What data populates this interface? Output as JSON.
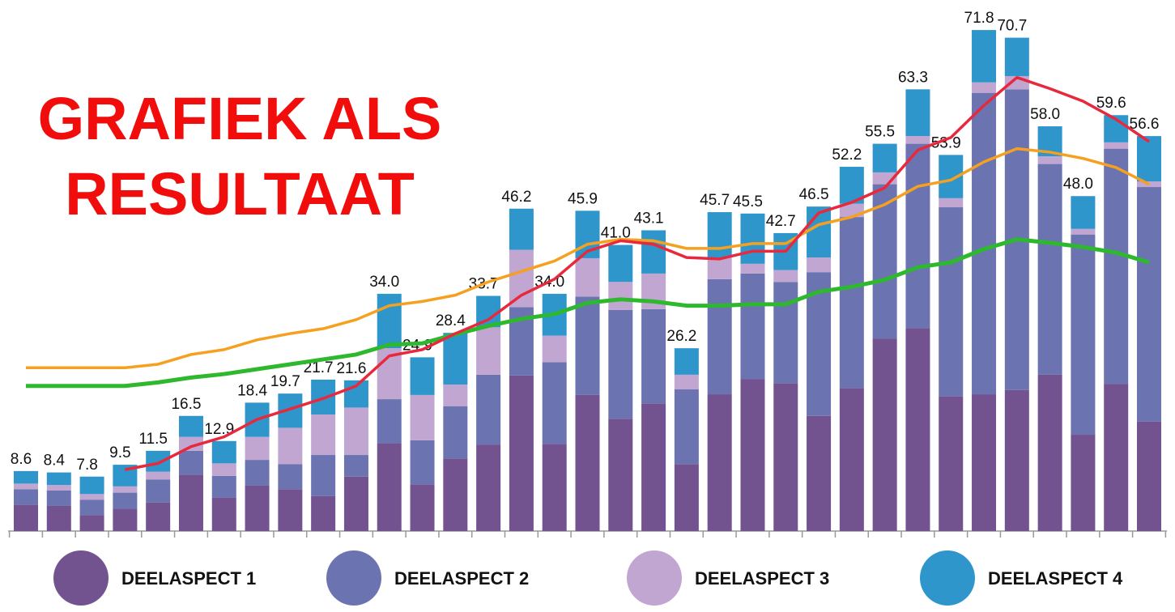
{
  "chart_data": {
    "type": "bar",
    "stacked": true,
    "title": [
      "GRAFIEK ALS",
      "RESULTAAT"
    ],
    "title_color": "#f20d0d",
    "totals": [
      8.6,
      8.4,
      7.8,
      9.5,
      11.5,
      16.5,
      12.9,
      18.4,
      19.7,
      21.7,
      21.6,
      34.0,
      24.9,
      28.4,
      33.7,
      46.2,
      34.0,
      45.9,
      41.0,
      43.1,
      26.2,
      45.7,
      45.5,
      42.7,
      46.5,
      52.2,
      55.5,
      63.3,
      53.9,
      71.8,
      70.7,
      58.0,
      48.0,
      59.6,
      56.6
    ],
    "value_labels": [
      "8.6",
      "8.4",
      "7.8",
      "9.5",
      "11.5",
      "16.5",
      "12.9",
      "18.4",
      "19.7",
      "21.7",
      "21.6",
      "34.0",
      "24.9",
      "28.4",
      "33.7",
      "46.2",
      "34.0",
      "45.9",
      "41.0",
      "43.1",
      "26.2",
      "45.7",
      "45.5",
      "42.7",
      "46.5",
      "52.2",
      "55.5",
      "63.3",
      "53.9",
      "71.8",
      "70.7",
      "58.0",
      "48.0",
      "59.6",
      "56.6"
    ],
    "series": [
      {
        "name": "DEELASPECT 1",
        "color": "#735290",
        "values": [
          3.8,
          3.6,
          2.3,
          3.2,
          4.1,
          8.1,
          4.8,
          6.5,
          6.0,
          5.0,
          7.8,
          12.6,
          6.7,
          10.4,
          12.4,
          22.3,
          12.5,
          19.5,
          16.1,
          18.3,
          9.6,
          19.6,
          21.8,
          21.2,
          16.5,
          20.5,
          27.6,
          29.1,
          19.3,
          19.6,
          20.2,
          22.4,
          13.8,
          21.1,
          15.7
        ]
      },
      {
        "name": "DEELASPECT 2",
        "color": "#6b74b0",
        "values": [
          2.2,
          2.2,
          2.2,
          2.3,
          3.3,
          3.4,
          3.1,
          3.7,
          3.6,
          5.9,
          3.1,
          6.3,
          6.3,
          7.5,
          10.0,
          9.8,
          11.7,
          14.1,
          15.6,
          13.5,
          10.7,
          16.5,
          15.1,
          14.5,
          20.6,
          24.5,
          22.1,
          26.4,
          27.1,
          43.2,
          43.1,
          30.2,
          28.7,
          33.7,
          33.6
        ]
      },
      {
        "name": "DEELASPECT 3",
        "color": "#c0a6d0",
        "values": [
          0.8,
          0.8,
          0.8,
          0.9,
          1.1,
          2.0,
          1.8,
          3.3,
          5.2,
          5.8,
          6.8,
          7.3,
          6.5,
          3.1,
          6.8,
          8.2,
          3.8,
          5.5,
          4.0,
          5.1,
          2.1,
          3.1,
          1.4,
          1.7,
          2.1,
          1.9,
          1.7,
          1.1,
          1.3,
          1.5,
          1.9,
          1.1,
          0.8,
          0.9,
          0.8
        ]
      },
      {
        "name": "DEELASPECT 4",
        "color": "#2f96cc",
        "values": [
          1.8,
          1.8,
          2.5,
          3.1,
          3.0,
          3.0,
          3.2,
          4.9,
          4.9,
          5.0,
          3.9,
          7.8,
          5.4,
          7.4,
          4.5,
          5.9,
          6.0,
          6.8,
          5.3,
          6.2,
          3.8,
          6.5,
          7.2,
          5.3,
          7.3,
          5.3,
          4.1,
          6.7,
          6.2,
          7.5,
          5.5,
          4.3,
          4.7,
          3.9,
          6.5
        ]
      }
    ],
    "lines": [
      {
        "color": "#f5a020",
        "values": [
          23.4,
          23.4,
          23.4,
          23.4,
          23.9,
          25.3,
          26.0,
          27.4,
          28.3,
          29.0,
          30.3,
          32.3,
          32.9,
          33.8,
          35.7,
          37.2,
          38.7,
          41.1,
          41.8,
          41.6,
          40.5,
          40.5,
          41.2,
          41.2,
          43.9,
          45.0,
          46.8,
          49.4,
          50.3,
          52.9,
          54.8,
          54.3,
          53.4,
          52.1,
          49.7
        ]
      },
      {
        "color": "#2eb82e",
        "values": [
          20.8,
          20.8,
          20.8,
          20.8,
          21.3,
          22.0,
          22.5,
          23.2,
          23.9,
          24.6,
          25.3,
          26.7,
          26.9,
          28.2,
          29.4,
          30.4,
          31.1,
          32.7,
          33.2,
          32.9,
          32.3,
          32.3,
          32.5,
          32.5,
          34.3,
          35.0,
          36.0,
          37.8,
          38.5,
          40.4,
          41.8,
          41.3,
          40.7,
          39.9,
          38.5
        ]
      },
      {
        "color": "#e8283c",
        "values": [
          null,
          null,
          null,
          8.8,
          9.7,
          12.1,
          13.5,
          16.0,
          17.5,
          19.0,
          20.8,
          25.1,
          26.0,
          28.3,
          30.3,
          33.8,
          36.1,
          40.1,
          41.6,
          41.1,
          39.2,
          39.0,
          40.1,
          40.1,
          45.6,
          47.1,
          49.2,
          54.6,
          56.4,
          61.0,
          65.0,
          63.4,
          61.6,
          59.0,
          55.8
        ]
      }
    ]
  }
}
